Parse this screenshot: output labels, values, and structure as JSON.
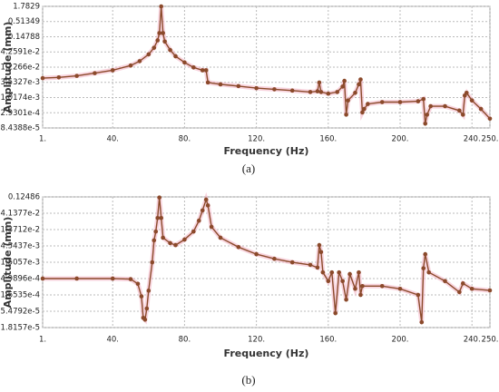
{
  "chart_data": [
    {
      "type": "line",
      "x_label": "Frequency (Hz)",
      "y_label": "Amplitude (mm)",
      "caption": "(a)",
      "log_y": true,
      "grid": true,
      "color": "#8b4a2b",
      "xlim": [
        1,
        250
      ],
      "ylim": [
        8.4388e-05,
        1.7829
      ],
      "xticks": [
        {
          "value": 1,
          "label": "1."
        },
        {
          "value": 40,
          "label": "40."
        },
        {
          "value": 80,
          "label": "80."
        },
        {
          "value": 120,
          "label": "120."
        },
        {
          "value": 160,
          "label": "160."
        },
        {
          "value": 200,
          "label": "200."
        },
        {
          "value": 240,
          "label": "240."
        },
        {
          "value": 250,
          "label": "250."
        }
      ],
      "yticks": [
        1.7829,
        0.51349,
        0.14788,
        {
          "value": 0.042591,
          "label": "4.2591e-2"
        },
        {
          "value": 0.012266,
          "label": "1.2266e-2"
        },
        {
          "value": 0.0035327,
          "label": "3.5327e-3"
        },
        {
          "value": 0.0010174,
          "label": "1.0174e-3"
        },
        {
          "value": 0.00029301,
          "label": "2.9301e-4"
        },
        {
          "value": 8.4388e-05,
          "label": "8.4388e-5"
        }
      ],
      "x": [
        1,
        10,
        20,
        30,
        40,
        50,
        55,
        60,
        63,
        65,
        66,
        67,
        68,
        69,
        72,
        75,
        80,
        85,
        90,
        92,
        93,
        100,
        110,
        120,
        130,
        140,
        150,
        154,
        155,
        156,
        160,
        165,
        168,
        169,
        170,
        171,
        175,
        177,
        178,
        179,
        180,
        182,
        190,
        200,
        210,
        213,
        214,
        215,
        217,
        225,
        233,
        235,
        236,
        237,
        240,
        245,
        250
      ],
      "values": [
        0.005,
        0.0053,
        0.006,
        0.0075,
        0.0095,
        0.014,
        0.02,
        0.035,
        0.06,
        0.11,
        0.2,
        1.78,
        0.2,
        0.1,
        0.05,
        0.03,
        0.018,
        0.012,
        0.0095,
        0.0095,
        0.0035,
        0.003,
        0.0026,
        0.0022,
        0.002,
        0.0018,
        0.0016,
        0.0017,
        0.0035,
        0.0016,
        0.0014,
        0.0016,
        0.0025,
        0.004,
        0.00025,
        0.0008,
        0.0015,
        0.003,
        0.0045,
        0.0003,
        0.0004,
        0.0006,
        0.0007,
        0.0007,
        0.00075,
        0.0009,
        0.00012,
        0.00025,
        0.0005,
        0.0005,
        0.00035,
        0.00025,
        0.0012,
        0.0015,
        0.0008,
        0.0004,
        0.00018
      ]
    },
    {
      "type": "line",
      "x_label": "Frequency (Hz)",
      "y_label": "Amplitude (mm)",
      "caption": "(b)",
      "log_y": true,
      "grid": true,
      "color": "#8b4a2b",
      "xlim": [
        1,
        250
      ],
      "ylim": [
        1.8157e-05,
        0.12486
      ],
      "xticks": [
        {
          "value": 1,
          "label": "1."
        },
        {
          "value": 40,
          "label": "40."
        },
        {
          "value": 80,
          "label": "80."
        },
        {
          "value": 120,
          "label": "120."
        },
        {
          "value": 160,
          "label": "160."
        },
        {
          "value": 200,
          "label": "200."
        },
        {
          "value": 240,
          "label": "240."
        },
        {
          "value": 250,
          "label": "250."
        }
      ],
      "yticks": [
        0.12486,
        {
          "value": 0.041377,
          "label": "4.1377e-2"
        },
        {
          "value": 0.013712,
          "label": "1.3712e-2"
        },
        {
          "value": 0.0045437,
          "label": "4.5437e-3"
        },
        {
          "value": 0.0015057,
          "label": "1.5057e-3"
        },
        {
          "value": 0.00049896,
          "label": "4.9896e-4"
        },
        {
          "value": 0.00016535,
          "label": "1.6535e-4"
        },
        {
          "value": 5.4792e-05,
          "label": "5.4792e-5"
        },
        {
          "value": 1.8157e-05,
          "label": "1.8157e-5"
        }
      ],
      "x": [
        1,
        20,
        40,
        50,
        54,
        56,
        57,
        58,
        59,
        60,
        62,
        63,
        64,
        65,
        66,
        67,
        68,
        72,
        75,
        80,
        85,
        88,
        90,
        92,
        93,
        95,
        100,
        110,
        120,
        130,
        140,
        150,
        154,
        155,
        156,
        157,
        160,
        162,
        164,
        166,
        168,
        170,
        172,
        175,
        177,
        178,
        179,
        190,
        200,
        210,
        212,
        213,
        214,
        216,
        225,
        233,
        235,
        240,
        250
      ],
      "values": [
        0.0005,
        0.0005,
        0.0005,
        0.00048,
        0.00035,
        0.00015,
        3.5e-05,
        3.1e-05,
        6.6e-05,
        0.00022,
        0.0015,
        0.0066,
        0.012,
        0.03,
        0.12,
        0.03,
        0.0079,
        0.0055,
        0.0048,
        0.007,
        0.012,
        0.025,
        0.05,
        0.104,
        0.07,
        0.0165,
        0.0079,
        0.0042,
        0.0026,
        0.0019,
        0.0015,
        0.00126,
        0.00105,
        0.0048,
        0.003,
        0.00076,
        0.00042,
        0.00076,
        4.8e-05,
        0.00076,
        0.00042,
        0.00012,
        0.00068,
        0.00025,
        0.00076,
        0.000165,
        0.0003,
        0.0003,
        0.00025,
        0.000165,
        2.6e-05,
        0.001,
        0.0026,
        0.00076,
        0.00042,
        0.0002,
        0.00036,
        0.00025,
        0.000224
      ]
    }
  ]
}
